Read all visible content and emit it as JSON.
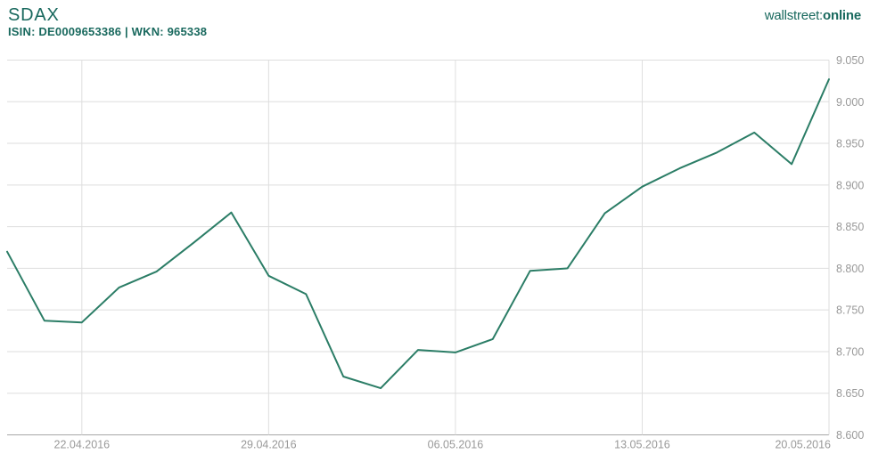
{
  "header": {
    "title": "SDAX",
    "subtitle": "ISIN: DE0009653386 | WKN: 965338"
  },
  "brand": {
    "part1": "wallstreet:",
    "part2": "online"
  },
  "colors": {
    "accent_teal": "#19695e",
    "line": "#2b7d66",
    "gridline": "#dedede",
    "axis_line": "#a8a8a8",
    "tick_text": "#999999",
    "background": "#ffffff"
  },
  "chart_data": {
    "type": "line",
    "title": "SDAX",
    "x": [
      "20.04.2016",
      "21.04.2016",
      "22.04.2016",
      "25.04.2016",
      "26.04.2016",
      "27.04.2016",
      "28.04.2016",
      "29.04.2016",
      "02.05.2016",
      "03.05.2016",
      "04.05.2016",
      "05.05.2016",
      "06.05.2016",
      "09.05.2016",
      "10.05.2016",
      "11.05.2016",
      "12.05.2016",
      "13.05.2016",
      "16.05.2016",
      "17.05.2016",
      "18.05.2016",
      "19.05.2016",
      "20.05.2016"
    ],
    "values": [
      8.82,
      8.737,
      8.735,
      8.777,
      8.796,
      8.831,
      8.867,
      8.791,
      8.769,
      8.67,
      8.656,
      8.702,
      8.699,
      8.715,
      8.797,
      8.8,
      8.866,
      8.898,
      8.92,
      8.939,
      8.963,
      8.925,
      9.027
    ],
    "ylim": [
      8.6,
      9.05
    ],
    "ytick_labels_top_to_bottom": [
      "9.050",
      "9.000",
      "8.950",
      "8.900",
      "8.850",
      "8.800",
      "8.750",
      "8.700",
      "8.650",
      "8.600"
    ],
    "xtick_labels": [
      "22.04.2016",
      "29.04.2016",
      "06.05.2016",
      "13.05.2016",
      "20.05.2016"
    ],
    "xtick_indices": [
      2,
      7,
      12,
      17,
      22
    ],
    "grid": true,
    "legend": "none",
    "y_axis_side": "right"
  }
}
